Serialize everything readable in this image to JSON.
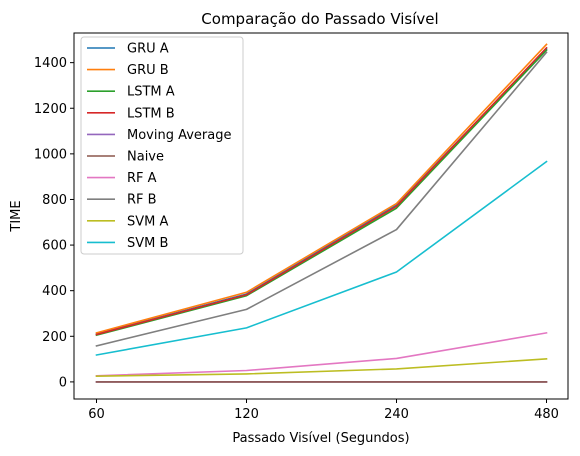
{
  "chart_data": {
    "type": "line",
    "title": "Comparação do Passado Visível",
    "xlabel": "Passado Visível (Segundos)",
    "ylabel": "TIME",
    "categories": [
      "60",
      "120",
      "240",
      "480"
    ],
    "ylim": [
      -75,
      1530
    ],
    "yticks": [
      0,
      200,
      400,
      600,
      800,
      1000,
      1200,
      1400
    ],
    "legend_position": "upper-left",
    "series": [
      {
        "name": "GRU A",
        "color": "#1f77b4",
        "values": [
          210,
          385,
          775,
          1460
        ]
      },
      {
        "name": "GRU B",
        "color": "#ff7f0e",
        "values": [
          215,
          393,
          782,
          1480
        ]
      },
      {
        "name": "LSTM A",
        "color": "#2ca02c",
        "values": [
          205,
          378,
          762,
          1455
        ]
      },
      {
        "name": "LSTM B",
        "color": "#d62728",
        "values": [
          208,
          382,
          770,
          1465
        ]
      },
      {
        "name": "Moving Average",
        "color": "#9467bd",
        "values": [
          0,
          0,
          0,
          0
        ]
      },
      {
        "name": "Naive",
        "color": "#8c564b",
        "values": [
          0,
          0,
          0,
          0
        ]
      },
      {
        "name": "RF A",
        "color": "#e377c2",
        "values": [
          27,
          50,
          103,
          215
        ]
      },
      {
        "name": "RF B",
        "color": "#7f7f7f",
        "values": [
          158,
          318,
          668,
          1445
        ]
      },
      {
        "name": "SVM A",
        "color": "#bcbd22",
        "values": [
          25,
          35,
          57,
          101
        ]
      },
      {
        "name": "SVM B",
        "color": "#17becf",
        "values": [
          118,
          237,
          482,
          966
        ]
      }
    ]
  }
}
